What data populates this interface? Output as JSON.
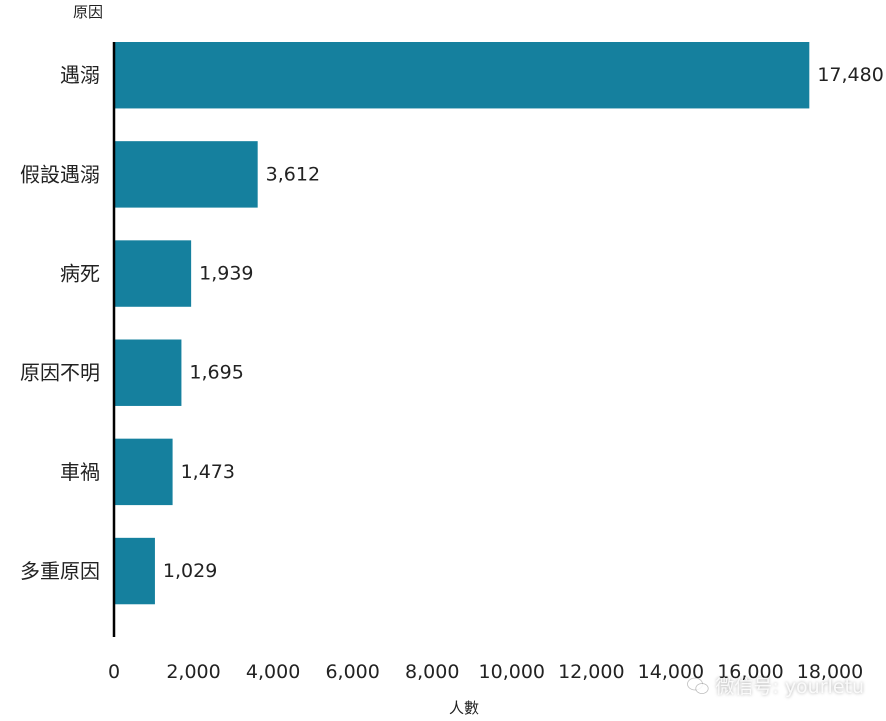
{
  "chart_data": {
    "type": "bar",
    "orientation": "horizontal",
    "ylabel": "原因",
    "xlabel": "人數",
    "categories": [
      "遇溺",
      "假設遇溺",
      "病死",
      "原因不明",
      "車禍",
      "多重原因"
    ],
    "values": [
      17480,
      3612,
      1939,
      1695,
      1473,
      1029
    ],
    "value_labels": [
      "17,480",
      "3,612",
      "1,939",
      "1,695",
      "1,473",
      "1,029"
    ],
    "xlim": [
      0,
      18000
    ],
    "x_ticks": [
      "0",
      "2,000",
      "4,000",
      "6,000",
      "8,000",
      "10,000",
      "12,000",
      "14,000",
      "16,000",
      "18,000"
    ],
    "grid": false,
    "bar_color": "#15809e"
  },
  "watermark": {
    "text": "微信号: yourletu",
    "icon": "wechat-icon"
  }
}
